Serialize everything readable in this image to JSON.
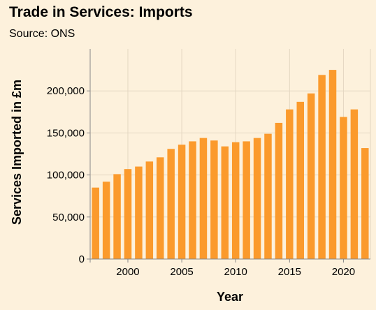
{
  "chart_data": {
    "type": "bar",
    "title": "Trade in Services: Imports",
    "subtitle": "Source: ONS",
    "xlabel": "Year",
    "ylabel": "Services Imported in £m",
    "x": [
      1997,
      1998,
      1999,
      2000,
      2001,
      2002,
      2003,
      2004,
      2005,
      2006,
      2007,
      2008,
      2009,
      2010,
      2011,
      2012,
      2013,
      2014,
      2015,
      2016,
      2017,
      2018,
      2019,
      2020,
      2021,
      2022
    ],
    "values": [
      85000,
      92000,
      101000,
      107000,
      110000,
      116000,
      121000,
      131000,
      136000,
      140000,
      144000,
      141000,
      134000,
      139000,
      140000,
      144000,
      149000,
      162000,
      178000,
      187000,
      197000,
      219000,
      225000,
      169000,
      178000,
      132000
    ],
    "xticks": [
      2000,
      2005,
      2010,
      2015,
      2020
    ],
    "xtick_labels": [
      "2000",
      "2005",
      "2010",
      "2015",
      "2020"
    ],
    "yticks": [
      0,
      50000,
      100000,
      150000,
      200000
    ],
    "ytick_labels": [
      "0",
      "50,000",
      "100,000",
      "150,000",
      "200,000"
    ],
    "xlim": [
      1996.5,
      2022.5
    ],
    "ylim": [
      0,
      250000
    ],
    "grid": true,
    "bar_color": "#fb9a2c",
    "grid_color": "#e4d7c2",
    "background_color": "#fdf1dc"
  }
}
